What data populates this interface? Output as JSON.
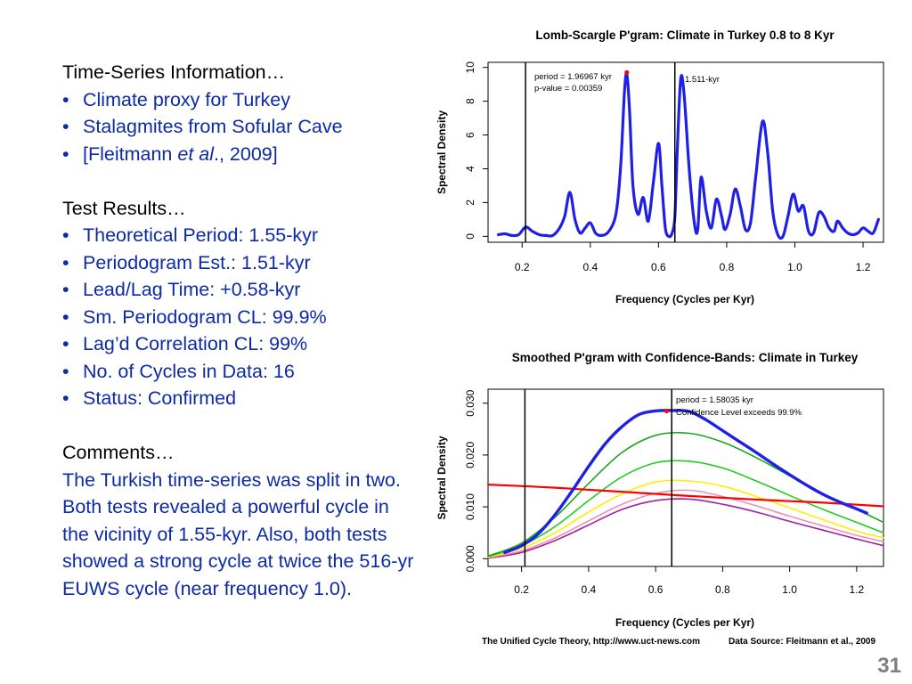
{
  "left": {
    "ts_header": "Time-Series Information…",
    "ts_items": [
      "Climate proxy for Turkey",
      "Stalagmites from Sofular Cave"
    ],
    "citation_pre": "[Fleitmann ",
    "citation_em": "et al",
    "citation_post": "., 2009]",
    "results_header": "Test Results…",
    "results_items": [
      "Theoretical Period:  1.55-kyr",
      "Periodogram Est.:  1.51-kyr",
      "Lead/Lag Time:    +0.58-kyr",
      "Sm. Periodogram CL:  99.9%",
      "Lag’d Correlation CL:  99%",
      "No. of Cycles in Data:  16",
      "Status:  Confirmed"
    ],
    "comments_header": "Comments…",
    "comments_text": "The Turkish time-series was split in two.  Both tests revealed a powerful cycle in the vicinity of 1.55-kyr.  Also, both tests showed a strong cycle at twice the 516-yr EUWS cycle (near frequency 1.0)."
  },
  "footer": {
    "credit_left": "The Unified Cycle Theory,  http://www.uct-news.com",
    "credit_right": "Data Source:  Fleitmann et al., 2009",
    "slide_number": "31"
  },
  "chart_data": [
    {
      "type": "line",
      "title": "Lomb-Scargle P'gram: Climate in Turkey 0.8 to 8 Kyr",
      "xlabel": "Frequency (Cycles per Kyr)",
      "ylabel": "Spectral Density",
      "xlim": [
        0.1,
        1.26
      ],
      "ylim": [
        -0.35,
        10.3
      ],
      "xticks": [
        "0.2",
        "0.4",
        "0.6",
        "0.8",
        "1.0",
        "1.2"
      ],
      "yticks": [
        "0",
        "2",
        "4",
        "6",
        "8",
        "10"
      ],
      "vlines": [
        0.21,
        0.648
      ],
      "series": [
        {
          "color": "#1f1fe6",
          "x": [
            0.13,
            0.15,
            0.17,
            0.19,
            0.21,
            0.23,
            0.25,
            0.27,
            0.29,
            0.31,
            0.325,
            0.34,
            0.355,
            0.37,
            0.385,
            0.4,
            0.415,
            0.43,
            0.45,
            0.47,
            0.48,
            0.49,
            0.5,
            0.507,
            0.515,
            0.525,
            0.54,
            0.555,
            0.57,
            0.585,
            0.6,
            0.61,
            0.62,
            0.63,
            0.64,
            0.648,
            0.655,
            0.665,
            0.675,
            0.69,
            0.705,
            0.715,
            0.725,
            0.74,
            0.755,
            0.77,
            0.785,
            0.795,
            0.81,
            0.825,
            0.84,
            0.855,
            0.87,
            0.885,
            0.905,
            0.92,
            0.935,
            0.95,
            0.965,
            0.98,
            0.995,
            1.01,
            1.025,
            1.04,
            1.055,
            1.07,
            1.085,
            1.1,
            1.115,
            1.125,
            1.14,
            1.155,
            1.17,
            1.185,
            1.2,
            1.215,
            1.23,
            1.245
          ],
          "y": [
            0.1,
            0.15,
            0.05,
            0.1,
            0.55,
            0.3,
            0.1,
            0.05,
            0.05,
            0.5,
            1.2,
            2.6,
            1.0,
            0.2,
            0.5,
            0.8,
            0.2,
            0.05,
            0.2,
            0.9,
            2.0,
            4.5,
            8.5,
            9.6,
            7.5,
            3.0,
            1.3,
            2.3,
            0.9,
            3.2,
            5.5,
            3.0,
            0.5,
            0.0,
            0.2,
            1.2,
            5.0,
            9.3,
            8.4,
            4.0,
            0.8,
            0.4,
            3.5,
            1.5,
            0.5,
            2.2,
            1.2,
            0.4,
            1.3,
            2.8,
            1.8,
            0.4,
            0.8,
            3.5,
            6.8,
            5.0,
            1.5,
            0.1,
            0.0,
            1.2,
            2.5,
            1.5,
            1.8,
            0.3,
            0.2,
            1.4,
            1.2,
            0.5,
            0.3,
            0.9,
            0.5,
            0.2,
            0.1,
            0.2,
            0.5,
            0.3,
            0.2,
            1.0
          ]
        }
      ],
      "marker": {
        "x": 0.507,
        "y": 9.7,
        "color": "#ff0000"
      },
      "annotations": [
        "period = 1.96967 kyr",
        "p-value = 0.00359",
        "1.511-kyr"
      ]
    },
    {
      "type": "line",
      "title": "Smoothed P'gram with Confidence-Bands: Climate in Turkey",
      "xlabel": "Frequency (Cycles per Kyr)",
      "ylabel": "Spectral Density",
      "xlim": [
        0.1,
        1.28
      ],
      "ylim": [
        -0.0015,
        0.0327
      ],
      "xticks": [
        "0.2",
        "0.4",
        "0.6",
        "0.8",
        "1.0",
        "1.2"
      ],
      "yticks": [
        "0.000",
        "0.010",
        "0.020",
        "0.030"
      ],
      "vlines": [
        0.21,
        0.648
      ],
      "series": [
        {
          "color": "#a020a0",
          "x": [
            0.1,
            0.2,
            0.3,
            0.4,
            0.5,
            0.6,
            0.7,
            0.8,
            0.9,
            1.0,
            1.1,
            1.2,
            1.28
          ],
          "y": [
            0.0001,
            0.0012,
            0.0035,
            0.0065,
            0.0095,
            0.0112,
            0.0115,
            0.0105,
            0.009,
            0.0072,
            0.0055,
            0.0038,
            0.0025
          ]
        },
        {
          "color": "#ee90b0",
          "x": [
            0.1,
            0.2,
            0.3,
            0.4,
            0.5,
            0.6,
            0.7,
            0.8,
            0.9,
            1.0,
            1.1,
            1.2,
            1.28
          ],
          "y": [
            0.0002,
            0.0015,
            0.004,
            0.0073,
            0.0105,
            0.0126,
            0.0132,
            0.012,
            0.0102,
            0.0082,
            0.0063,
            0.0045,
            0.0033
          ]
        },
        {
          "color": "#ffee00",
          "x": [
            0.1,
            0.2,
            0.3,
            0.4,
            0.5,
            0.6,
            0.7,
            0.8,
            0.9,
            1.0,
            1.1,
            1.2,
            1.28
          ],
          "y": [
            0.0003,
            0.002,
            0.005,
            0.009,
            0.0125,
            0.0148,
            0.015,
            0.014,
            0.012,
            0.0098,
            0.0075,
            0.0053,
            0.004
          ]
        },
        {
          "color": "#22cc22",
          "x": [
            0.1,
            0.2,
            0.3,
            0.4,
            0.5,
            0.6,
            0.7,
            0.8,
            0.9,
            1.0,
            1.1,
            1.2,
            1.28
          ],
          "y": [
            0.0004,
            0.0025,
            0.0062,
            0.0112,
            0.0158,
            0.0185,
            0.0188,
            0.0175,
            0.015,
            0.0122,
            0.0095,
            0.007,
            0.005
          ]
        },
        {
          "color": "#1aa81a",
          "x": [
            0.1,
            0.2,
            0.3,
            0.4,
            0.5,
            0.6,
            0.7,
            0.8,
            0.9,
            1.0,
            1.1,
            1.2,
            1.28
          ],
          "y": [
            0.0005,
            0.003,
            0.008,
            0.0145,
            0.0205,
            0.0238,
            0.0242,
            0.0225,
            0.0195,
            0.016,
            0.0125,
            0.0095,
            0.007
          ]
        },
        {
          "color": "#ff0000",
          "x": [
            0.1,
            0.3,
            0.5,
            0.7,
            0.9,
            1.1,
            1.28
          ],
          "y": [
            0.0143,
            0.0137,
            0.0129,
            0.0121,
            0.0114,
            0.0108,
            0.0101
          ]
        },
        {
          "color": "#1f1fe6",
          "x": [
            0.15,
            0.2,
            0.25,
            0.3,
            0.35,
            0.4,
            0.45,
            0.5,
            0.55,
            0.6,
            0.65,
            0.7,
            0.75,
            0.8,
            0.85,
            0.9,
            0.95,
            1.0,
            1.05,
            1.1,
            1.15,
            1.2,
            1.23
          ],
          "y": [
            0.0012,
            0.0025,
            0.0048,
            0.0085,
            0.013,
            0.0178,
            0.0222,
            0.0255,
            0.0278,
            0.0285,
            0.0286,
            0.0284,
            0.0268,
            0.0247,
            0.0226,
            0.0205,
            0.0183,
            0.0162,
            0.0142,
            0.0124,
            0.0109,
            0.0096,
            0.0088
          ]
        }
      ],
      "marker": {
        "x": 0.633,
        "y": 0.0285,
        "color": "#ff0000"
      },
      "annotations": [
        "period = 1.58035 kyr",
        "Confidence Level exceeds 99.9%"
      ]
    }
  ]
}
